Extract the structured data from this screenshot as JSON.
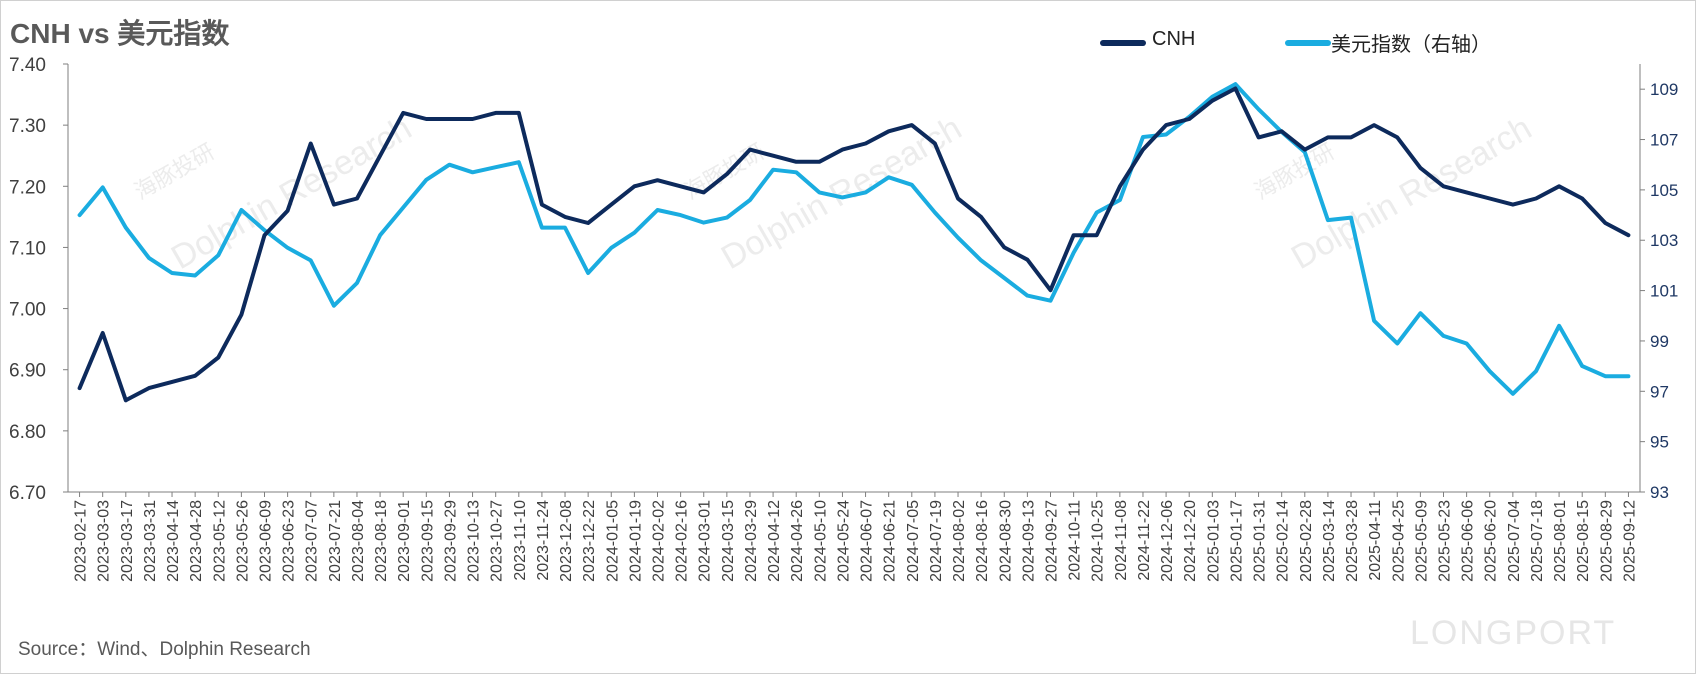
{
  "title": "CNH vs 美元指数",
  "source": "Source：Wind、Dolphin Research",
  "watermark": {
    "brand": "LONGPORT",
    "cn": "海豚投研",
    "en": "Dolphin Research"
  },
  "colors": {
    "cnh": "#0d2a5c",
    "dxy": "#1aace0",
    "axis": "#7f7f7f",
    "text": "#404040",
    "right_text": "#1f3864"
  },
  "chart_data": {
    "type": "line",
    "title": "CNH vs 美元指数",
    "xlabel": "",
    "ylabel_left": "",
    "ylabel_right": "",
    "legend": "top-right",
    "grid": false,
    "ylim_left": [
      6.7,
      7.4
    ],
    "ylim_right": [
      93,
      110
    ],
    "yticks_left": [
      "7.40",
      "7.30",
      "7.20",
      "7.10",
      "7.00",
      "6.90",
      "6.80",
      "6.70"
    ],
    "yticks_right": [
      "109",
      "107",
      "105",
      "103",
      "101",
      "99",
      "97",
      "95",
      "93"
    ],
    "x_categories": [
      "2023-02-17",
      "2023-03-03",
      "2023-03-17",
      "2023-03-31",
      "2023-04-14",
      "2023-04-28",
      "2023-05-12",
      "2023-05-26",
      "2023-06-09",
      "2023-06-23",
      "2023-07-07",
      "2023-07-21",
      "2023-08-04",
      "2023-08-18",
      "2023-09-01",
      "2023-09-15",
      "2023-09-29",
      "2023-10-13",
      "2023-10-27",
      "2023-11-10",
      "2023-11-24",
      "2023-12-08",
      "2023-12-22",
      "2024-01-05",
      "2024-01-19",
      "2024-02-02",
      "2024-02-16",
      "2024-03-01",
      "2024-03-15",
      "2024-03-29",
      "2024-04-12",
      "2024-04-26",
      "2024-05-10",
      "2024-05-24",
      "2024-06-07",
      "2024-06-21",
      "2024-07-05",
      "2024-07-19",
      "2024-08-02",
      "2024-08-16",
      "2024-08-30",
      "2024-09-13",
      "2024-09-27",
      "2024-10-11",
      "2024-10-25",
      "2024-11-08",
      "2024-11-22",
      "2024-12-06",
      "2024-12-20",
      "2025-01-03",
      "2025-01-17",
      "2025-01-31",
      "2025-02-14",
      "2025-02-28",
      "2025-03-14",
      "2025-03-28",
      "2025-04-11",
      "2025-04-25",
      "2025-05-09",
      "2025-05-23",
      "2025-06-06",
      "2025-06-20",
      "2025-07-04",
      "2025-07-18",
      "2025-08-01",
      "2025-08-15",
      "2025-08-29",
      "2025-09-12"
    ],
    "series": [
      {
        "name": "CNH",
        "axis": "left",
        "values": [
          6.87,
          6.96,
          6.85,
          6.87,
          6.88,
          6.89,
          6.92,
          6.99,
          7.12,
          7.16,
          7.27,
          7.17,
          7.18,
          7.25,
          7.32,
          7.31,
          7.31,
          7.31,
          7.32,
          7.32,
          7.17,
          7.15,
          7.14,
          7.17,
          7.2,
          7.21,
          7.2,
          7.19,
          7.22,
          7.26,
          7.25,
          7.24,
          7.24,
          7.26,
          7.27,
          7.29,
          7.3,
          7.27,
          7.18,
          7.15,
          7.1,
          7.08,
          7.03,
          7.12,
          7.12,
          7.2,
          7.26,
          7.3,
          7.31,
          7.34,
          7.36,
          7.28,
          7.29,
          7.26,
          7.28,
          7.28,
          7.3,
          7.28,
          7.23,
          7.2,
          7.19,
          7.18,
          7.17,
          7.18,
          7.2,
          7.18,
          7.14,
          7.12
        ]
      },
      {
        "name": "美元指数（右轴）",
        "axis": "right",
        "values": [
          104.0,
          105.1,
          103.5,
          102.3,
          101.7,
          101.6,
          102.4,
          104.2,
          103.4,
          102.7,
          102.2,
          100.4,
          101.3,
          103.2,
          104.3,
          105.4,
          106.0,
          105.7,
          105.9,
          106.1,
          103.5,
          103.5,
          101.7,
          102.7,
          103.3,
          104.2,
          104.0,
          103.7,
          103.9,
          104.6,
          105.8,
          105.7,
          104.9,
          104.7,
          104.9,
          105.5,
          105.2,
          104.1,
          103.1,
          102.2,
          101.5,
          100.8,
          100.6,
          102.5,
          104.1,
          104.6,
          107.1,
          107.2,
          107.9,
          108.7,
          109.2,
          108.2,
          107.3,
          106.5,
          103.8,
          103.9,
          99.8,
          98.9,
          100.1,
          99.2,
          98.9,
          97.8,
          96.9,
          97.8,
          99.6,
          98.0,
          97.6,
          97.6
        ]
      }
    ]
  }
}
